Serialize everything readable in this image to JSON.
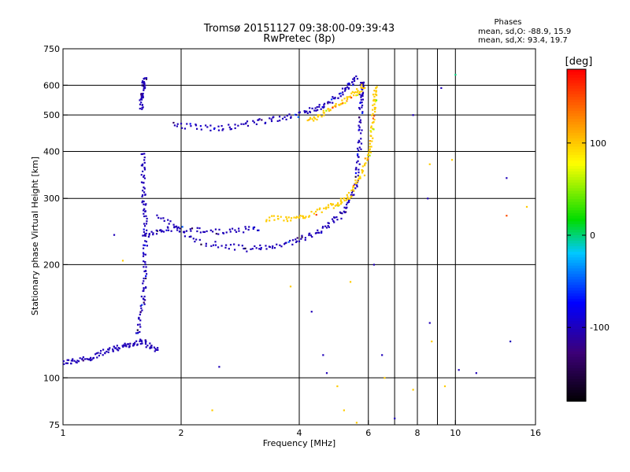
{
  "chart_data": {
    "type": "scatter",
    "title": "Tromsø 20151127 09:38:00-09:39:43",
    "subtitle": "RwPretec (8p)",
    "xlabel": "Frequency [MHz]",
    "ylabel": "Stationary phase Virtual Height [km]",
    "x_scale": "log",
    "y_scale": "log",
    "xlim": [
      1,
      16
    ],
    "ylim": [
      75,
      750
    ],
    "x_ticks": [
      1,
      2,
      4,
      6,
      8,
      10,
      16
    ],
    "x_tick_labels": [
      "1",
      "2",
      "4",
      "6",
      "8",
      "10",
      "16"
    ],
    "y_ticks": [
      75,
      100,
      200,
      300,
      400,
      500,
      600,
      750
    ],
    "y_tick_labels": [
      "75",
      "100",
      "200",
      "300",
      "400",
      "500",
      "600",
      "750"
    ],
    "x_grid": [
      2,
      4,
      6,
      8,
      10
    ],
    "y_grid": [
      100,
      200,
      300,
      400,
      500,
      600
    ],
    "x_minor": [
      7,
      9
    ],
    "stats": {
      "header": "Phases",
      "line_o": "mean, sd,O: -88.9, 15.9",
      "line_x": "mean, sd,X:  93.4, 19.7"
    },
    "colorbar": {
      "unit": "[deg]",
      "range": [
        -180,
        180
      ],
      "ticks": [
        100,
        0,
        -100
      ],
      "tick_labels": [
        "100",
        "0",
        "-100"
      ]
    },
    "traces": [
      {
        "segment": "E/Es blob",
        "color_phase": -100,
        "points": [
          [
            1.0,
            110
          ],
          [
            1.15,
            112
          ],
          [
            1.3,
            118
          ],
          [
            1.45,
            122
          ],
          [
            1.6,
            125
          ],
          [
            1.75,
            118
          ]
        ]
      },
      {
        "segment": "Es rise",
        "color_phase": -100,
        "points": [
          [
            1.55,
            130
          ],
          [
            1.6,
            160
          ],
          [
            1.62,
            200
          ],
          [
            1.62,
            260
          ],
          [
            1.6,
            320
          ],
          [
            1.6,
            400
          ]
        ]
      },
      {
        "segment": "upper Es",
        "color_phase": -100,
        "points": [
          [
            1.58,
            520
          ],
          [
            1.6,
            580
          ],
          [
            1.62,
            630
          ]
        ]
      },
      {
        "segment": "F2 O-trace",
        "color_phase": -100,
        "points": [
          [
            1.75,
            270
          ],
          [
            2.2,
            230
          ],
          [
            3.0,
            220
          ],
          [
            3.8,
            228
          ],
          [
            4.5,
            245
          ],
          [
            5.2,
            275
          ],
          [
            5.6,
            330
          ],
          [
            5.7,
            420
          ],
          [
            5.75,
            540
          ],
          [
            5.8,
            620
          ]
        ]
      },
      {
        "segment": "F2 O-echo",
        "color_phase": -100,
        "points": [
          [
            1.6,
            240
          ],
          [
            1.9,
            250
          ],
          [
            2.5,
            245
          ],
          [
            3.2,
            250
          ]
        ]
      },
      {
        "segment": "F2 X-trace",
        "color_phase": 100,
        "points": [
          [
            3.3,
            265
          ],
          [
            4.0,
            265
          ],
          [
            4.8,
            285
          ],
          [
            5.3,
            300
          ],
          [
            5.8,
            350
          ],
          [
            6.1,
            420
          ],
          [
            6.2,
            520
          ],
          [
            6.25,
            600
          ]
        ]
      },
      {
        "segment": "multiple O",
        "color_phase": -100,
        "points": [
          [
            1.9,
            470
          ],
          [
            2.5,
            460
          ],
          [
            3.2,
            480
          ],
          [
            4.0,
            500
          ],
          [
            4.6,
            530
          ],
          [
            5.2,
            580
          ],
          [
            5.6,
            630
          ]
        ]
      },
      {
        "segment": "multiple X",
        "color_phase": 100,
        "points": [
          [
            4.2,
            480
          ],
          [
            4.8,
            520
          ],
          [
            5.4,
            560
          ],
          [
            5.9,
            600
          ]
        ]
      }
    ],
    "noise": [
      {
        "x": 1.35,
        "y": 240,
        "phase": -100
      },
      {
        "x": 1.42,
        "y": 205,
        "phase": 100
      },
      {
        "x": 2.5,
        "y": 107,
        "phase": -100
      },
      {
        "x": 2.4,
        "y": 82,
        "phase": 100
      },
      {
        "x": 3.8,
        "y": 175,
        "phase": 100
      },
      {
        "x": 4.3,
        "y": 150,
        "phase": -100
      },
      {
        "x": 4.7,
        "y": 103,
        "phase": -100
      },
      {
        "x": 5.0,
        "y": 95,
        "phase": 100
      },
      {
        "x": 5.2,
        "y": 82,
        "phase": 100
      },
      {
        "x": 5.4,
        "y": 180,
        "phase": 100
      },
      {
        "x": 6.2,
        "y": 200,
        "phase": -100
      },
      {
        "x": 6.5,
        "y": 115,
        "phase": -100
      },
      {
        "x": 6.6,
        "y": 100,
        "phase": 100
      },
      {
        "x": 7.0,
        "y": 78,
        "phase": -100
      },
      {
        "x": 7.8,
        "y": 93,
        "phase": 100
      },
      {
        "x": 8.5,
        "y": 300,
        "phase": -100
      },
      {
        "x": 8.6,
        "y": 140,
        "phase": -100
      },
      {
        "x": 8.7,
        "y": 125,
        "phase": 100
      },
      {
        "x": 9.4,
        "y": 95,
        "phase": 100
      },
      {
        "x": 9.8,
        "y": 380,
        "phase": 100
      },
      {
        "x": 10.2,
        "y": 105,
        "phase": -100
      },
      {
        "x": 11.3,
        "y": 103,
        "phase": -100
      },
      {
        "x": 13.5,
        "y": 340,
        "phase": -100
      },
      {
        "x": 13.5,
        "y": 270,
        "phase": 150
      },
      {
        "x": 13.8,
        "y": 125,
        "phase": -100
      },
      {
        "x": 15.2,
        "y": 285,
        "phase": 100
      },
      {
        "x": 9.2,
        "y": 590,
        "phase": -100
      },
      {
        "x": 10.0,
        "y": 640,
        "phase": 0
      },
      {
        "x": 7.8,
        "y": 500,
        "phase": -100
      },
      {
        "x": 8.6,
        "y": 370,
        "phase": 100
      },
      {
        "x": 5.6,
        "y": 76,
        "phase": 100
      },
      {
        "x": 4.6,
        "y": 115,
        "phase": -100
      }
    ]
  }
}
